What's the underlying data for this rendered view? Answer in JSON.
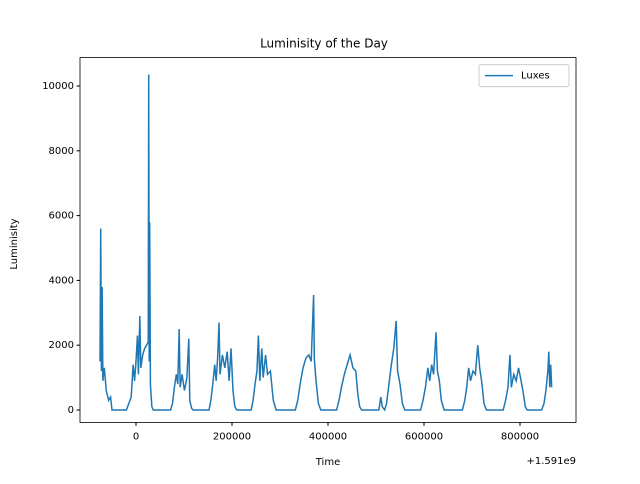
{
  "chart_data": {
    "type": "line",
    "title": "Luminisity of the Day",
    "x_label": "Time",
    "y_label": "Luminisity",
    "x_offset_label": "+1.591e9",
    "x": [
      -75000,
      -73500,
      -72000,
      -70500,
      -69000,
      -66000,
      -62000,
      -57000,
      -53000,
      -50000,
      -20000,
      -15000,
      -10000,
      -6000,
      -3000,
      0,
      3000,
      5000,
      8000,
      10000,
      14000,
      18000,
      22000,
      25500,
      26500,
      27500,
      28500,
      30000,
      33000,
      36000,
      72000,
      76000,
      80000,
      84000,
      87000,
      90000,
      92000,
      96000,
      101000,
      106000,
      110000,
      112000,
      116000,
      119000,
      152000,
      156000,
      160000,
      164000,
      167000,
      170000,
      173000,
      175000,
      180000,
      185000,
      190000,
      194000,
      198000,
      202000,
      206000,
      210000,
      240000,
      244000,
      248000,
      252000,
      255000,
      258000,
      262000,
      265000,
      270000,
      274000,
      280000,
      286000,
      292000,
      332000,
      337000,
      342000,
      348000,
      354000,
      360000,
      365000,
      370000,
      371500,
      375000,
      380000,
      385000,
      418000,
      423000,
      428000,
      434000,
      440000,
      446000,
      452000,
      458000,
      462000,
      466000,
      470000,
      506000,
      510000,
      513000,
      518000,
      522000,
      527000,
      532000,
      537000,
      542000,
      545000,
      550000,
      555000,
      560000,
      593000,
      598000,
      603000,
      608000,
      612000,
      616000,
      620000,
      625000,
      628000,
      632000,
      636000,
      642000,
      680000,
      685000,
      689000,
      693000,
      697000,
      702000,
      707000,
      712000,
      716000,
      720000,
      725000,
      730000,
      765000,
      770000,
      775000,
      779000,
      782000,
      787000,
      792000,
      797000,
      801000,
      806000,
      811000,
      815000,
      845000,
      850000,
      854000,
      858000,
      860000,
      862000,
      864000,
      866000
    ],
    "series": [
      {
        "name": "Luxes",
        "color": "#1f77b4",
        "values": [
          1500,
          5600,
          1200,
          3800,
          900,
          1300,
          600,
          300,
          400,
          0,
          0,
          200,
          400,
          1400,
          900,
          1500,
          2300,
          1100,
          2900,
          1300,
          1700,
          1900,
          2000,
          2100,
          10350,
          1500,
          5800,
          800,
          100,
          0,
          0,
          200,
          700,
          1100,
          800,
          2500,
          700,
          1100,
          600,
          1000,
          2200,
          300,
          50,
          0,
          0,
          300,
          800,
          1400,
          900,
          1600,
          2700,
          1100,
          1700,
          1300,
          1800,
          900,
          1900,
          600,
          100,
          0,
          0,
          300,
          800,
          1200,
          2300,
          900,
          1900,
          1000,
          1700,
          1100,
          1200,
          300,
          0,
          0,
          300,
          800,
          1300,
          1600,
          1700,
          1500,
          3550,
          1600,
          900,
          200,
          0,
          0,
          300,
          700,
          1100,
          1400,
          1700,
          1300,
          1200,
          500,
          100,
          0,
          0,
          400,
          100,
          0,
          200,
          800,
          1400,
          1900,
          2750,
          1200,
          800,
          200,
          0,
          0,
          300,
          700,
          1300,
          900,
          1400,
          1100,
          2400,
          1200,
          900,
          300,
          0,
          0,
          300,
          700,
          1300,
          900,
          1200,
          1100,
          2000,
          1300,
          900,
          200,
          0,
          0,
          300,
          700,
          1700,
          700,
          1100,
          900,
          1300,
          1000,
          600,
          100,
          0,
          0,
          200,
          600,
          1200,
          1800,
          700,
          1400,
          700
        ]
      }
    ],
    "xlim": [
      -116667,
      916667
    ],
    "xticks": [
      0,
      200000,
      400000,
      600000,
      800000
    ],
    "ylim": [
      -383,
      10877
    ],
    "yticks": [
      0,
      2000,
      4000,
      6000,
      8000,
      10000
    ],
    "legend": "upper right"
  }
}
